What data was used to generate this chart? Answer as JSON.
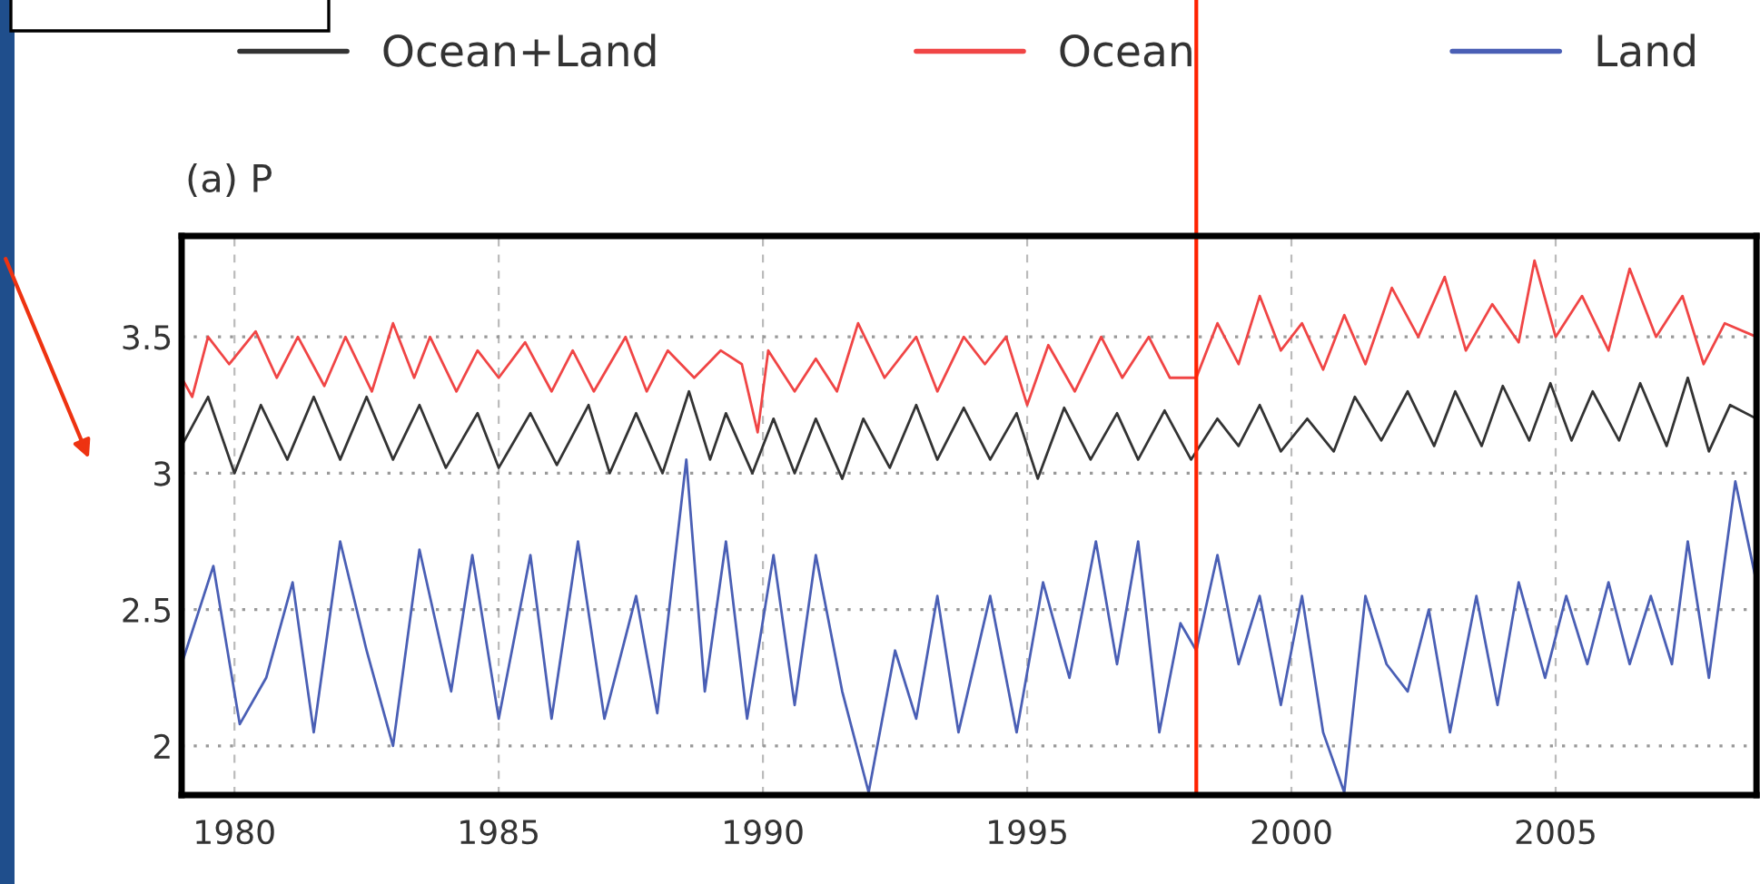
{
  "chart_data": {
    "type": "line",
    "title": "(a) P",
    "xlim": [
      1979.0,
      2008.8
    ],
    "xticks": [
      1980,
      1985,
      1990,
      1995,
      2000,
      2005
    ],
    "ylim": [
      1.82,
      3.87
    ],
    "yticks": [
      2,
      2.5,
      3,
      3.5
    ],
    "grid": true,
    "legend": "top",
    "line_style": "solid",
    "marker": "none",
    "ref_lines": [
      {
        "axis": "x",
        "value": 1998.2,
        "color": "#ff2200"
      }
    ],
    "series": [
      {
        "name": "Ocean+Land",
        "color": "#333333",
        "x": [
          1979.0,
          1979.5,
          1980.0,
          1980.5,
          1981.0,
          1981.5,
          1982.0,
          1982.5,
          1983.0,
          1983.5,
          1984.0,
          1984.6,
          1985.0,
          1985.6,
          1986.1,
          1986.7,
          1987.1,
          1987.6,
          1988.1,
          1988.6,
          1989.0,
          1989.3,
          1989.8,
          1990.2,
          1990.6,
          1991.0,
          1991.5,
          1991.9,
          1992.4,
          1992.9,
          1993.3,
          1993.8,
          1994.3,
          1994.8,
          1995.2,
          1995.7,
          1996.2,
          1996.7,
          1997.1,
          1997.6,
          1998.1,
          1998.6,
          1999.0,
          1999.4,
          1999.8,
          2000.3,
          2000.8,
          2001.2,
          2001.7,
          2002.2,
          2002.7,
          2003.1,
          2003.6,
          2004.0,
          2004.5,
          2004.9,
          2005.3,
          2005.7,
          2006.2,
          2006.6,
          2007.1,
          2007.5,
          2007.9,
          2008.3,
          2008.8
        ],
        "values": [
          3.1,
          3.28,
          3.0,
          3.25,
          3.05,
          3.28,
          3.05,
          3.28,
          3.05,
          3.25,
          3.02,
          3.22,
          3.02,
          3.22,
          3.03,
          3.25,
          3.0,
          3.22,
          3.0,
          3.3,
          3.05,
          3.22,
          3.0,
          3.2,
          3.0,
          3.2,
          2.98,
          3.2,
          3.02,
          3.25,
          3.05,
          3.24,
          3.05,
          3.22,
          2.98,
          3.24,
          3.05,
          3.22,
          3.05,
          3.23,
          3.05,
          3.2,
          3.1,
          3.25,
          3.08,
          3.2,
          3.08,
          3.28,
          3.12,
          3.3,
          3.1,
          3.3,
          3.1,
          3.32,
          3.12,
          3.33,
          3.12,
          3.3,
          3.12,
          3.33,
          3.1,
          3.35,
          3.08,
          3.25,
          3.2
        ]
      },
      {
        "name": "Ocean",
        "color": "#f04545",
        "x": [
          1979.0,
          1979.2,
          1979.5,
          1979.9,
          1980.4,
          1980.8,
          1981.2,
          1981.7,
          1982.1,
          1982.6,
          1983.0,
          1983.4,
          1983.7,
          1984.2,
          1984.6,
          1985.0,
          1985.5,
          1986.0,
          1986.4,
          1986.8,
          1987.4,
          1987.8,
          1988.2,
          1988.7,
          1989.2,
          1989.6,
          1989.9,
          1990.1,
          1990.6,
          1991.0,
          1991.4,
          1991.8,
          1992.3,
          1992.9,
          1993.3,
          1993.8,
          1994.2,
          1994.6,
          1995.0,
          1995.4,
          1995.9,
          1996.4,
          1996.8,
          1997.3,
          1997.7,
          1998.2,
          1998.6,
          1999.0,
          1999.4,
          1999.8,
          2000.2,
          2000.6,
          2001.0,
          2001.4,
          2001.9,
          2002.4,
          2002.9,
          2003.3,
          2003.8,
          2004.3,
          2004.6,
          2005.0,
          2005.5,
          2006.0,
          2006.4,
          2006.9,
          2007.4,
          2007.8,
          2008.2,
          2008.8
        ],
        "values": [
          3.35,
          3.28,
          3.5,
          3.4,
          3.52,
          3.35,
          3.5,
          3.32,
          3.5,
          3.3,
          3.55,
          3.35,
          3.5,
          3.3,
          3.45,
          3.35,
          3.48,
          3.3,
          3.45,
          3.3,
          3.5,
          3.3,
          3.45,
          3.35,
          3.45,
          3.4,
          3.15,
          3.45,
          3.3,
          3.42,
          3.3,
          3.55,
          3.35,
          3.5,
          3.3,
          3.5,
          3.4,
          3.5,
          3.25,
          3.47,
          3.3,
          3.5,
          3.35,
          3.5,
          3.35,
          3.35,
          3.55,
          3.4,
          3.65,
          3.45,
          3.55,
          3.38,
          3.58,
          3.4,
          3.68,
          3.5,
          3.72,
          3.45,
          3.62,
          3.48,
          3.78,
          3.5,
          3.65,
          3.45,
          3.75,
          3.5,
          3.65,
          3.4,
          3.55,
          3.5
        ]
      },
      {
        "name": "Land",
        "color": "#4a5fb5",
        "x": [
          1979.0,
          1979.6,
          1980.1,
          1980.6,
          1981.1,
          1981.5,
          1982.0,
          1982.5,
          1983.0,
          1983.5,
          1984.1,
          1984.5,
          1985.0,
          1985.6,
          1986.0,
          1986.5,
          1987.0,
          1987.6,
          1988.0,
          1988.55,
          1988.9,
          1989.3,
          1989.7,
          1990.2,
          1990.6,
          1991.0,
          1991.5,
          1992.0,
          1992.5,
          1992.9,
          1993.3,
          1993.7,
          1994.3,
          1994.8,
          1995.3,
          1995.8,
          1996.3,
          1996.7,
          1997.1,
          1997.5,
          1997.9,
          1998.2,
          1998.6,
          1999.0,
          1999.4,
          1999.8,
          2000.2,
          2000.6,
          2001.0,
          2001.4,
          2001.8,
          2002.2,
          2002.6,
          2003.0,
          2003.5,
          2003.9,
          2004.3,
          2004.8,
          2005.2,
          2005.6,
          2006.0,
          2006.4,
          2006.8,
          2007.2,
          2007.5,
          2007.9,
          2008.4,
          2008.8
        ],
        "values": [
          2.3,
          2.66,
          2.08,
          2.25,
          2.6,
          2.05,
          2.75,
          2.35,
          2.0,
          2.72,
          2.2,
          2.7,
          2.1,
          2.7,
          2.1,
          2.75,
          2.1,
          2.55,
          2.12,
          3.05,
          2.2,
          2.75,
          2.1,
          2.7,
          2.15,
          2.7,
          2.2,
          1.83,
          2.35,
          2.1,
          2.55,
          2.05,
          2.55,
          2.05,
          2.6,
          2.25,
          2.75,
          2.3,
          2.75,
          2.05,
          2.45,
          2.35,
          2.7,
          2.3,
          2.55,
          2.15,
          2.55,
          2.05,
          1.83,
          2.55,
          2.3,
          2.2,
          2.5,
          2.05,
          2.55,
          2.15,
          2.6,
          2.25,
          2.55,
          2.3,
          2.6,
          2.3,
          2.55,
          2.3,
          2.75,
          2.25,
          2.97,
          2.6
        ]
      }
    ]
  }
}
